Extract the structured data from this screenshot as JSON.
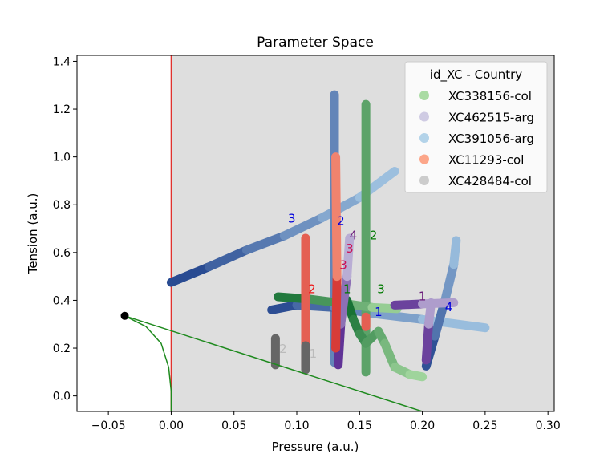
{
  "chart_data": {
    "type": "scatter",
    "title": "Parameter Space",
    "xlabel": "Pressure (a.u.)",
    "ylabel": "Tension (a.u.)",
    "xlim": [
      -0.075,
      0.305
    ],
    "ylim": [
      -0.065,
      1.425
    ],
    "xticks": [
      -0.05,
      0.0,
      0.05,
      0.1,
      0.15,
      0.2,
      0.25,
      0.3
    ],
    "xtick_labels": [
      "−0.05",
      "0.00",
      "0.05",
      "0.10",
      "0.15",
      "0.20",
      "0.25",
      "0.30"
    ],
    "yticks": [
      0.0,
      0.2,
      0.4,
      0.6,
      0.8,
      1.0,
      1.2,
      1.4
    ],
    "ytick_labels": [
      "0.0",
      "0.2",
      "0.4",
      "0.6",
      "0.8",
      "1.0",
      "1.2",
      "1.4"
    ],
    "grid": false,
    "shaded_region": {
      "x_from": 0.0,
      "color": "#dedede"
    },
    "vertical_line": {
      "x": 0.0,
      "color": "#e0332f"
    },
    "legend": {
      "title": "id_XC - Country",
      "placement": "top-right",
      "entries": [
        {
          "label": "XC338156-col",
          "color": "#a9dba3"
        },
        {
          "label": "XC462515-arg",
          "color": "#cfcbe3"
        },
        {
          "label": "XC391056-arg",
          "color": "#b3d3e9"
        },
        {
          "label": "XC11293-col",
          "color": "#fca689"
        },
        {
          "label": "XC428484-col",
          "color": "#cccccc"
        }
      ]
    },
    "boundary": {
      "point": [
        -0.037,
        0.335
      ],
      "line_to": [
        0.2,
        -0.065
      ],
      "curve": [
        [
          -0.037,
          0.335
        ],
        [
          -0.02,
          0.29
        ],
        [
          -0.008,
          0.22
        ],
        [
          -0.002,
          0.12
        ],
        [
          0.0,
          0.02
        ],
        [
          0.0,
          -0.065
        ]
      ],
      "color": "#1e8a1e"
    },
    "series": [
      {
        "color_from": "#1e3f8a",
        "color_to": "#a7cbe6",
        "segments": [
          [
            [
              0.0,
              0.475
            ],
            [
              0.03,
              0.54
            ],
            [
              0.06,
              0.61
            ],
            [
              0.09,
              0.67
            ],
            [
              0.12,
              0.745
            ],
            [
              0.15,
              0.83
            ],
            [
              0.178,
              0.94
            ]
          ],
          [
            [
              0.13,
              0.14
            ],
            [
              0.13,
              1.26
            ]
          ],
          [
            [
              0.08,
              0.36
            ],
            [
              0.1,
              0.38
            ],
            [
              0.13,
              0.37
            ],
            [
              0.16,
              0.345
            ],
            [
              0.2,
              0.32
            ],
            [
              0.25,
              0.285
            ]
          ],
          [
            [
              0.203,
              0.125
            ],
            [
              0.21,
              0.25
            ],
            [
              0.218,
              0.4
            ],
            [
              0.225,
              0.55
            ],
            [
              0.227,
              0.65
            ]
          ]
        ],
        "labels": [
          {
            "text": "1",
            "x": 0.162,
            "y": 0.335,
            "color": "#0000dd"
          },
          {
            "text": "2",
            "x": 0.132,
            "y": 0.715,
            "color": "#0000dd"
          },
          {
            "text": "3",
            "x": 0.093,
            "y": 0.725,
            "color": "#0000dd"
          },
          {
            "text": "4",
            "x": 0.218,
            "y": 0.355,
            "color": "#0000dd"
          }
        ]
      },
      {
        "color_from": "#0e6b2e",
        "color_to": "#a9dba3",
        "segments": [
          [
            [
              0.155,
              0.1
            ],
            [
              0.155,
              1.22
            ]
          ],
          [
            [
              0.085,
              0.415
            ],
            [
              0.11,
              0.405
            ],
            [
              0.14,
              0.385
            ],
            [
              0.16,
              0.37
            ],
            [
              0.18,
              0.365
            ]
          ],
          [
            [
              0.14,
              0.4
            ],
            [
              0.145,
              0.32
            ],
            [
              0.15,
              0.26
            ],
            [
              0.155,
              0.22
            ],
            [
              0.165,
              0.27
            ],
            [
              0.17,
              0.22
            ],
            [
              0.178,
              0.12
            ],
            [
              0.19,
              0.09
            ],
            [
              0.2,
              0.08
            ]
          ]
        ],
        "labels": [
          {
            "text": "1",
            "x": 0.137,
            "y": 0.43,
            "color": "#007a00"
          },
          {
            "text": "2",
            "x": 0.158,
            "y": 0.655,
            "color": "#007a00"
          },
          {
            "text": "3",
            "x": 0.164,
            "y": 0.43,
            "color": "#007a00"
          }
        ]
      },
      {
        "color_from": "#4a1486",
        "color_to": "#cfcbe3",
        "segments": [
          [
            [
              0.133,
              0.13
            ],
            [
              0.135,
              0.3
            ],
            [
              0.14,
              0.5
            ],
            [
              0.142,
              0.66
            ]
          ],
          [
            [
              0.178,
              0.38
            ],
            [
              0.2,
              0.385
            ],
            [
              0.225,
              0.39
            ]
          ],
          [
            [
              0.203,
              0.15
            ],
            [
              0.205,
              0.3
            ],
            [
              0.207,
              0.39
            ]
          ]
        ],
        "labels": [
          {
            "text": "1",
            "x": 0.197,
            "y": 0.4,
            "color": "#6a1a7a"
          },
          {
            "text": "4",
            "x": 0.142,
            "y": 0.655,
            "color": "#6a1a7a"
          }
        ]
      },
      {
        "color_from": "#cb181d",
        "color_to": "#fca689",
        "segments": [
          [
            [
              0.107,
              0.12
            ],
            [
              0.107,
              0.66
            ]
          ],
          [
            [
              0.131,
              0.2
            ],
            [
              0.132,
              0.5
            ],
            [
              0.131,
              1.0
            ]
          ],
          [
            [
              0.155,
              0.29
            ],
            [
              0.155,
              0.33
            ]
          ]
        ],
        "labels": [
          {
            "text": "2",
            "x": 0.109,
            "y": 0.43,
            "color": "#ee1111"
          },
          {
            "text": "3",
            "x": 0.134,
            "y": 0.53,
            "color": "#cc1155"
          },
          {
            "text": "3",
            "x": 0.139,
            "y": 0.6,
            "color": "#cc1155"
          }
        ]
      },
      {
        "color_from": "#000000",
        "color_to": "#cccccc",
        "segments": [
          [
            [
              0.083,
              0.13
            ],
            [
              0.083,
              0.24
            ]
          ],
          [
            [
              0.107,
              0.11
            ],
            [
              0.107,
              0.21
            ]
          ]
        ],
        "labels": [
          {
            "text": "2",
            "x": 0.086,
            "y": 0.18,
            "color": "#bbbbbb"
          },
          {
            "text": "1",
            "x": 0.11,
            "y": 0.16,
            "color": "#bbbbbb"
          }
        ]
      }
    ]
  }
}
